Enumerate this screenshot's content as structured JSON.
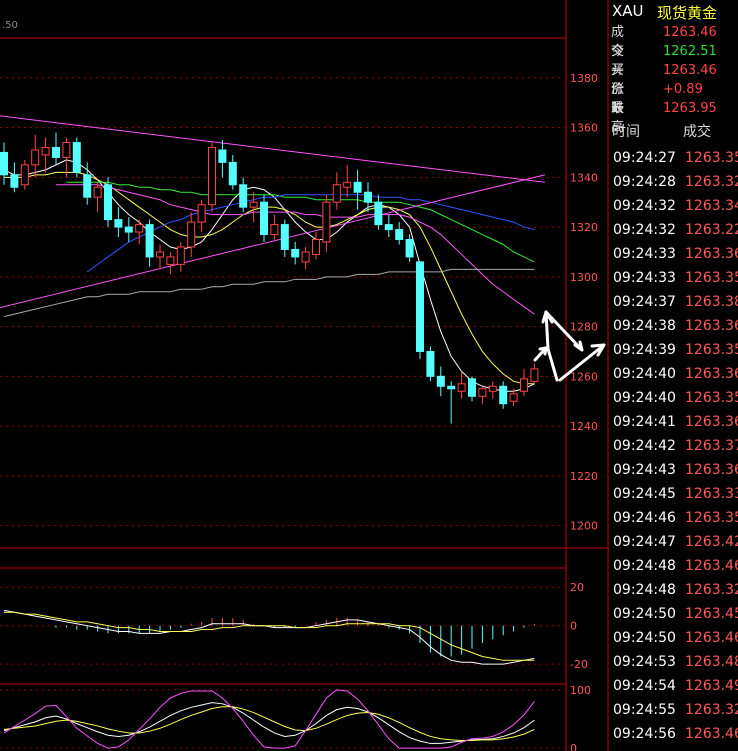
{
  "header": {
    "symbol": "XAU",
    "name": "现货黄金"
  },
  "top_label": ".50",
  "quote": [
    {
      "key": "成交",
      "value": "1263.46",
      "color": "#ff4444"
    },
    {
      "key": "今开",
      "value": "1262.51",
      "color": "#33dd33"
    },
    {
      "key": "买价1",
      "value": "1263.46",
      "color": "#ff4444"
    },
    {
      "key": "涨跌",
      "value": "+0.89",
      "color": "#ff4444"
    },
    {
      "key": "最高",
      "value": "1263.95",
      "color": "#ff4444"
    }
  ],
  "trades_header": {
    "time": "时间",
    "price": "成交"
  },
  "trades": [
    {
      "time": "09:24:27",
      "price": "1263.35"
    },
    {
      "time": "09:24:28",
      "price": "1263.32"
    },
    {
      "time": "09:24:32",
      "price": "1263.34"
    },
    {
      "time": "09:24:32",
      "price": "1263.22"
    },
    {
      "time": "09:24:33",
      "price": "1263.36"
    },
    {
      "time": "09:24:33",
      "price": "1263.35"
    },
    {
      "time": "09:24:37",
      "price": "1263.38"
    },
    {
      "time": "09:24:38",
      "price": "1263.36"
    },
    {
      "time": "09:24:39",
      "price": "1263.35"
    },
    {
      "time": "09:24:40",
      "price": "1263.36"
    },
    {
      "time": "09:24:40",
      "price": "1263.35"
    },
    {
      "time": "09:24:41",
      "price": "1263.36"
    },
    {
      "time": "09:24:42",
      "price": "1263.37"
    },
    {
      "time": "09:24:43",
      "price": "1263.36"
    },
    {
      "time": "09:24:45",
      "price": "1263.33"
    },
    {
      "time": "09:24:46",
      "price": "1263.35"
    },
    {
      "time": "09:24:47",
      "price": "1263.42"
    },
    {
      "time": "09:24:48",
      "price": "1263.46"
    },
    {
      "time": "09:24:48",
      "price": "1263.32"
    },
    {
      "time": "09:24:50",
      "price": "1263.45"
    },
    {
      "time": "09:24:50",
      "price": "1263.46"
    },
    {
      "time": "09:24:53",
      "price": "1263.48"
    },
    {
      "time": "09:24:54",
      "price": "1263.49"
    },
    {
      "time": "09:24:55",
      "price": "1263.32"
    },
    {
      "time": "09:24:56",
      "price": "1263.46"
    }
  ],
  "chart_data": [
    {
      "type": "candlestick",
      "y_ticks": [
        1200,
        1220,
        1240,
        1260,
        1280,
        1300,
        1320,
        1340,
        1360,
        1380
      ],
      "ylim": [
        1191,
        1396
      ],
      "up_color": "#ff4444",
      "down_color": "#55ffff",
      "candles": [
        {
          "o": 1350,
          "h": 1354,
          "l": 1337,
          "c": 1341
        },
        {
          "o": 1341,
          "h": 1346,
          "l": 1334,
          "c": 1336
        },
        {
          "o": 1337,
          "h": 1347,
          "l": 1335,
          "c": 1345
        },
        {
          "o": 1345,
          "h": 1357,
          "l": 1340,
          "c": 1351
        },
        {
          "o": 1349,
          "h": 1356,
          "l": 1342,
          "c": 1352
        },
        {
          "o": 1352,
          "h": 1358,
          "l": 1345,
          "c": 1348
        },
        {
          "o": 1348,
          "h": 1356,
          "l": 1340,
          "c": 1354
        },
        {
          "o": 1354,
          "h": 1356,
          "l": 1340,
          "c": 1342
        },
        {
          "o": 1341,
          "h": 1346,
          "l": 1329,
          "c": 1332
        },
        {
          "o": 1332,
          "h": 1338,
          "l": 1326,
          "c": 1336
        },
        {
          "o": 1337,
          "h": 1340,
          "l": 1320,
          "c": 1323
        },
        {
          "o": 1323,
          "h": 1328,
          "l": 1316,
          "c": 1320
        },
        {
          "o": 1320,
          "h": 1324,
          "l": 1314,
          "c": 1318
        },
        {
          "o": 1318,
          "h": 1323,
          "l": 1313,
          "c": 1321
        },
        {
          "o": 1321,
          "h": 1323,
          "l": 1304,
          "c": 1308
        },
        {
          "o": 1308,
          "h": 1313,
          "l": 1303,
          "c": 1310
        },
        {
          "o": 1305,
          "h": 1310,
          "l": 1301,
          "c": 1308
        },
        {
          "o": 1305,
          "h": 1314,
          "l": 1302,
          "c": 1312
        },
        {
          "o": 1312,
          "h": 1326,
          "l": 1308,
          "c": 1322
        },
        {
          "o": 1322,
          "h": 1331,
          "l": 1318,
          "c": 1329
        },
        {
          "o": 1329,
          "h": 1354,
          "l": 1326,
          "c": 1352
        },
        {
          "o": 1351,
          "h": 1355,
          "l": 1340,
          "c": 1346
        },
        {
          "o": 1346,
          "h": 1349,
          "l": 1335,
          "c": 1337
        },
        {
          "o": 1337,
          "h": 1340,
          "l": 1326,
          "c": 1328
        },
        {
          "o": 1328,
          "h": 1334,
          "l": 1322,
          "c": 1330
        },
        {
          "o": 1330,
          "h": 1333,
          "l": 1314,
          "c": 1317
        },
        {
          "o": 1317,
          "h": 1325,
          "l": 1315,
          "c": 1321
        },
        {
          "o": 1321,
          "h": 1323,
          "l": 1308,
          "c": 1311
        },
        {
          "o": 1311,
          "h": 1314,
          "l": 1305,
          "c": 1308
        },
        {
          "o": 1306,
          "h": 1312,
          "l": 1303,
          "c": 1310
        },
        {
          "o": 1309,
          "h": 1318,
          "l": 1307,
          "c": 1315
        },
        {
          "o": 1314,
          "h": 1333,
          "l": 1310,
          "c": 1330
        },
        {
          "o": 1330,
          "h": 1342,
          "l": 1327,
          "c": 1337
        },
        {
          "o": 1336,
          "h": 1345,
          "l": 1332,
          "c": 1338
        },
        {
          "o": 1338,
          "h": 1343,
          "l": 1327,
          "c": 1334
        },
        {
          "o": 1334,
          "h": 1338,
          "l": 1326,
          "c": 1330
        },
        {
          "o": 1330,
          "h": 1333,
          "l": 1319,
          "c": 1321
        },
        {
          "o": 1321,
          "h": 1325,
          "l": 1316,
          "c": 1319
        },
        {
          "o": 1319,
          "h": 1322,
          "l": 1313,
          "c": 1315
        },
        {
          "o": 1315,
          "h": 1317,
          "l": 1306,
          "c": 1308
        },
        {
          "o": 1306,
          "h": 1306,
          "l": 1267,
          "c": 1270
        },
        {
          "o": 1270,
          "h": 1272,
          "l": 1258,
          "c": 1260
        },
        {
          "o": 1260,
          "h": 1264,
          "l": 1252,
          "c": 1256
        },
        {
          "o": 1256,
          "h": 1258,
          "l": 1241,
          "c": 1255
        },
        {
          "o": 1254,
          "h": 1262,
          "l": 1251,
          "c": 1257
        },
        {
          "o": 1259,
          "h": 1260,
          "l": 1250,
          "c": 1252
        },
        {
          "o": 1252,
          "h": 1256,
          "l": 1249,
          "c": 1255
        },
        {
          "o": 1254,
          "h": 1258,
          "l": 1251,
          "c": 1256
        },
        {
          "o": 1256,
          "h": 1258,
          "l": 1247,
          "c": 1249
        },
        {
          "o": 1250,
          "h": 1255,
          "l": 1248,
          "c": 1253
        },
        {
          "o": 1254,
          "h": 1263,
          "l": 1252,
          "c": 1259
        },
        {
          "o": 1258,
          "h": 1265,
          "l": 1257,
          "c": 1263
        }
      ],
      "trendlines": [
        {
          "color": "#ff55ff",
          "from": [
            -1,
            1365
          ],
          "to": [
            52,
            1338
          ]
        },
        {
          "color": "#ff55ff",
          "from": [
            -1,
            1287
          ],
          "to": [
            52,
            1341
          ]
        }
      ],
      "moving_averages": [
        {
          "color": "#ffffff",
          "values": [
            1343,
            1341,
            1341,
            1342,
            1343,
            1345,
            1347,
            1346,
            1343,
            1339,
            1334,
            1329,
            1325,
            1322,
            1318,
            1315,
            1312,
            1311,
            1312,
            1314,
            1319,
            1325,
            1331,
            1335,
            1336,
            1335,
            1332,
            1327,
            1322,
            1318,
            1315,
            1315,
            1318,
            1322,
            1325,
            1328,
            1329,
            1328,
            1325,
            1320,
            1305,
            1291,
            1278,
            1268,
            1262,
            1258,
            1256,
            1255,
            1254,
            1254,
            1255,
            1257
          ]
        },
        {
          "color": "#ffff55",
          "values": [
            1340,
            1340,
            1340,
            1341,
            1341,
            1342,
            1342,
            1342,
            1341,
            1339,
            1337,
            1334,
            1331,
            1328,
            1325,
            1322,
            1319,
            1317,
            1316,
            1316,
            1317,
            1319,
            1322,
            1325,
            1327,
            1328,
            1328,
            1327,
            1325,
            1322,
            1320,
            1320,
            1321,
            1323,
            1325,
            1327,
            1328,
            1328,
            1327,
            1325,
            1320,
            1312,
            1303,
            1294,
            1285,
            1277,
            1270,
            1265,
            1261,
            1258,
            1257,
            1257
          ]
        },
        {
          "color": "#ff55ff",
          "values": [
            null,
            null,
            null,
            null,
            null,
            1337,
            1337,
            1337,
            1337,
            1337,
            1336,
            1335,
            1334,
            1333,
            1332,
            1331,
            1329,
            1328,
            1327,
            1326,
            1325,
            1325,
            1325,
            1325,
            1326,
            1326,
            1326,
            1326,
            1326,
            1325,
            1325,
            1324,
            1324,
            1324,
            1324,
            1325,
            1325,
            1325,
            1325,
            1324,
            1322,
            1320,
            1317,
            1313,
            1309,
            1305,
            1301,
            1297,
            1294,
            1291,
            1288,
            1285
          ]
        },
        {
          "color": "#33ee33",
          "values": [
            null,
            null,
            null,
            null,
            null,
            null,
            1338,
            1338,
            1338,
            1338,
            1338,
            1337,
            1337,
            1336,
            1336,
            1335,
            1335,
            1334,
            1334,
            1333,
            1333,
            1333,
            1333,
            1333,
            1333,
            1333,
            1333,
            1332,
            1332,
            1332,
            1331,
            1331,
            1331,
            1331,
            1331,
            1330,
            1330,
            1330,
            1330,
            1329,
            1328,
            1327,
            1325,
            1323,
            1321,
            1319,
            1317,
            1315,
            1313,
            1310,
            1308,
            1306
          ]
        },
        {
          "color": "#3355ff",
          "values": [
            null,
            null,
            null,
            null,
            null,
            null,
            null,
            null,
            1302,
            1305,
            1308,
            1311,
            1314,
            1316,
            1318,
            1320,
            1322,
            1323,
            1325,
            1326,
            1327,
            1328,
            1329,
            1330,
            1331,
            1332,
            1332,
            1333,
            1333,
            1333,
            1333,
            1333,
            1333,
            1333,
            1333,
            1333,
            1332,
            1332,
            1332,
            1331,
            1331,
            1330,
            1329,
            1328,
            1327,
            1326,
            1325,
            1324,
            1323,
            1322,
            1320,
            1319
          ]
        },
        {
          "color": "#aaaaaa",
          "values": [
            1284,
            1285,
            1286,
            1287,
            1288,
            1289,
            1290,
            1291,
            1292,
            1292,
            1293,
            1293,
            1293,
            1294,
            1294,
            1294,
            1294,
            1295,
            1295,
            1295,
            1296,
            1296,
            1297,
            1297,
            1297,
            1298,
            1298,
            1298,
            1299,
            1299,
            1299,
            1300,
            1300,
            1300,
            1301,
            1301,
            1301,
            1302,
            1302,
            1302,
            1302,
            1302,
            1302,
            1303,
            1303,
            1303,
            1303,
            1303,
            1303,
            1303,
            1303,
            1303
          ]
        }
      ]
    },
    {
      "type": "macd",
      "y_ticks": [
        20,
        0,
        -20
      ],
      "ylim": [
        -22,
        30
      ],
      "dif": [
        8,
        7,
        6,
        5,
        4,
        3,
        2,
        1,
        0,
        -1,
        -2,
        -3,
        -3,
        -4,
        -4,
        -4,
        -3,
        -3,
        -2,
        -1,
        1,
        1,
        1,
        1,
        0,
        0,
        -1,
        -1,
        -1,
        -1,
        0,
        1,
        2,
        3,
        3,
        2,
        1,
        0,
        -1,
        -2,
        -6,
        -11,
        -15,
        -18,
        -19,
        -19,
        -20,
        -20,
        -20,
        -19,
        -18,
        -17
      ],
      "dea": [
        7,
        7,
        6,
        6,
        5,
        4,
        3,
        2,
        2,
        1,
        0,
        -1,
        -1,
        -2,
        -2,
        -3,
        -3,
        -3,
        -3,
        -2,
        -2,
        -1,
        -1,
        0,
        0,
        0,
        0,
        0,
        -1,
        -1,
        -1,
        0,
        0,
        1,
        1,
        1,
        1,
        1,
        0,
        0,
        -1,
        -4,
        -7,
        -10,
        -12,
        -14,
        -16,
        -17,
        -18,
        -18,
        -18,
        -18
      ],
      "macd": [
        0,
        0,
        0,
        0,
        0,
        -1,
        -1,
        -2,
        -2,
        -3,
        -4,
        -4,
        -4,
        -4,
        -4,
        -3,
        -2,
        -1,
        1,
        2,
        4,
        4,
        4,
        3,
        1,
        0,
        -1,
        -1,
        -1,
        0,
        2,
        3,
        4,
        4,
        3,
        2,
        1,
        -1,
        -2,
        -4,
        -9,
        -14,
        -16,
        -16,
        -15,
        -12,
        -9,
        -7,
        -5,
        -3,
        -1,
        1
      ]
    },
    {
      "type": "kdj",
      "y_ticks": [
        100,
        0
      ],
      "ylim": [
        -5,
        110
      ],
      "k": [
        30,
        35,
        40,
        45,
        52,
        55,
        50,
        42,
        35,
        28,
        22,
        20,
        22,
        28,
        36,
        46,
        56,
        64,
        70,
        74,
        78,
        76,
        70,
        60,
        48,
        36,
        26,
        20,
        22,
        30,
        42,
        56,
        66,
        70,
        68,
        62,
        52,
        40,
        28,
        18,
        12,
        8,
        8,
        10,
        12,
        14,
        15,
        16,
        20,
        26,
        35,
        48
      ],
      "d": [
        32,
        34,
        36,
        38,
        42,
        46,
        48,
        46,
        42,
        38,
        33,
        29,
        26,
        26,
        29,
        34,
        41,
        49,
        56,
        62,
        68,
        71,
        71,
        67,
        61,
        53,
        45,
        37,
        31,
        30,
        34,
        41,
        49,
        56,
        60,
        61,
        58,
        52,
        44,
        35,
        27,
        20,
        16,
        14,
        13,
        13,
        14,
        14,
        16,
        19,
        24,
        32
      ],
      "j": [
        26,
        37,
        48,
        59,
        72,
        73,
        54,
        34,
        21,
        8,
        0,
        2,
        14,
        32,
        50,
        70,
        86,
        94,
        98,
        98,
        98,
        86,
        68,
        46,
        22,
        2,
        0,
        0,
        4,
        30,
        58,
        86,
        100,
        98,
        84,
        64,
        40,
        16,
        0,
        0,
        0,
        0,
        0,
        2,
        10,
        16,
        17,
        20,
        28,
        40,
        57,
        80
      ]
    }
  ],
  "colors": {
    "axis": "#c00000",
    "grid": "#8b0000",
    "tick_text": "#ff5555"
  }
}
